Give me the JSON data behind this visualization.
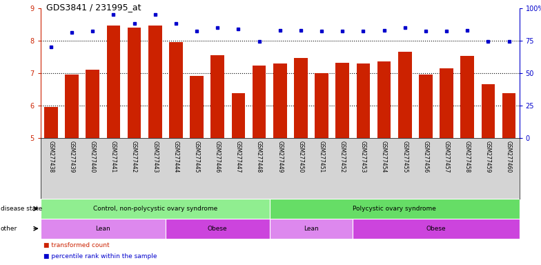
{
  "title": "GDS3841 / 231995_at",
  "samples": [
    "GSM277438",
    "GSM277439",
    "GSM277440",
    "GSM277441",
    "GSM277442",
    "GSM277443",
    "GSM277444",
    "GSM277445",
    "GSM277446",
    "GSM277447",
    "GSM277448",
    "GSM277449",
    "GSM277450",
    "GSM277451",
    "GSM277452",
    "GSM277453",
    "GSM277454",
    "GSM277455",
    "GSM277456",
    "GSM277457",
    "GSM277458",
    "GSM277459",
    "GSM277460"
  ],
  "bar_values": [
    5.95,
    6.95,
    7.1,
    8.45,
    8.4,
    8.45,
    7.95,
    6.9,
    7.55,
    6.38,
    7.22,
    7.28,
    7.45,
    7.0,
    7.3,
    7.28,
    7.35,
    7.65,
    6.95,
    7.15,
    7.52,
    6.65,
    6.38
  ],
  "blue_values": [
    70,
    81,
    82,
    95,
    88,
    95,
    88,
    82,
    85,
    84,
    74,
    83,
    83,
    82,
    82,
    82,
    83,
    85,
    82,
    82,
    83,
    74,
    74
  ],
  "ylim": [
    5,
    9
  ],
  "yticks_left": [
    5,
    6,
    7,
    8,
    9
  ],
  "yticks_right": [
    0,
    25,
    50,
    75,
    100
  ],
  "bar_color": "#cc2200",
  "dot_color": "#0000cc",
  "background_color": "#ffffff",
  "xlabels_bg": "#d4d4d4",
  "other_groups": [
    {
      "label": "Lean",
      "start": 0,
      "end": 6,
      "color": "#dd88ee"
    },
    {
      "label": "Obese",
      "start": 6,
      "end": 11,
      "color": "#cc44dd"
    },
    {
      "label": "Lean",
      "start": 11,
      "end": 15,
      "color": "#dd88ee"
    },
    {
      "label": "Obese",
      "start": 15,
      "end": 23,
      "color": "#cc44dd"
    }
  ],
  "disease_groups": [
    {
      "label": "Control, non-polycystic ovary syndrome",
      "start": 0,
      "end": 11,
      "color": "#90ee90"
    },
    {
      "label": "Polycystic ovary syndrome",
      "start": 11,
      "end": 23,
      "color": "#66dd66"
    }
  ]
}
